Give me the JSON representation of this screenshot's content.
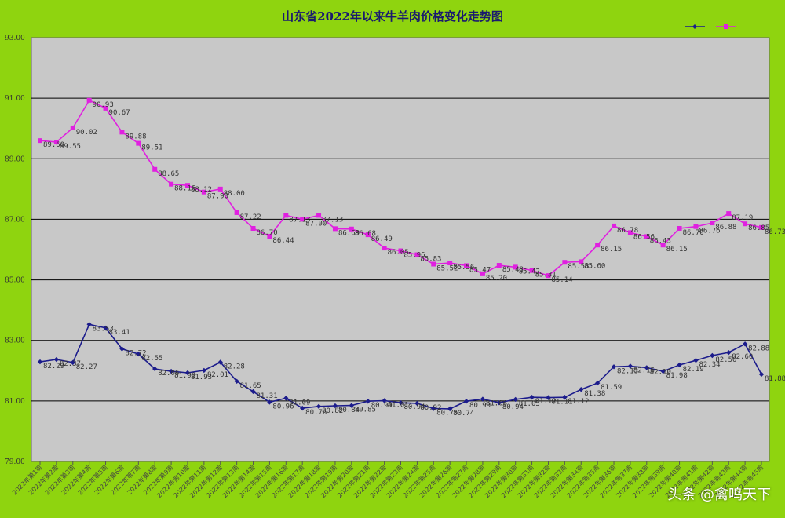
{
  "colors": {
    "background": "#8fd40f",
    "plot_area": "#c8c8c8",
    "series1": "#1c1c8c",
    "series2": "#e020e0",
    "gridline": "#000000"
  },
  "watermark": "头条 @禽鸣天下",
  "chart_data": {
    "type": "line",
    "title": "山东省2022年以来牛羊肉价格变化走势图",
    "xlabel": "",
    "ylabel": "",
    "ylim": [
      79,
      93
    ],
    "yticks": [
      "79.00",
      "81.00",
      "83.00",
      "85.00",
      "87.00",
      "89.00",
      "91.00",
      "93.00"
    ],
    "grid": true,
    "legend_position": "top-right",
    "categories": [
      "2022年第1周",
      "2022年第2周",
      "2022年第3周",
      "2022年第4周",
      "2022年第5周",
      "2022年第6周",
      "2022年第7周",
      "2022年第8周",
      "2022年第9周",
      "2022年第10周",
      "2022年第11周",
      "2022年第12周",
      "2022年第13周",
      "2022年第14周",
      "2022年第15周",
      "2022年第16周",
      "2022年第17周",
      "2022年第18周",
      "2022年第19周",
      "2022年第20周",
      "2022年第21周",
      "2022年第22周",
      "2022年第23周",
      "2022年第24周",
      "2022年第25周",
      "2022年第26周",
      "2022年第27周",
      "2022年第28周",
      "2022年第29周",
      "2022年第30周",
      "2022年第31周",
      "2022年第32周",
      "2022年第33周",
      "2022年第34周",
      "2022年第35周",
      "2022年第36周",
      "2022年第37周",
      "2022年第38周",
      "2022年第39周",
      "2022年第40周",
      "2022年第41周",
      "2022年第42周",
      "2022年第43周",
      "2022年第44周",
      "2022年第45周"
    ],
    "series": [
      {
        "values": [
          82.29,
          82.37,
          82.27,
          83.53,
          83.41,
          82.72,
          82.55,
          82.06,
          81.98,
          81.93,
          82.01,
          82.28,
          81.65,
          81.31,
          80.96,
          81.09,
          80.76,
          80.82,
          80.84,
          80.85,
          80.99,
          81.01,
          80.94,
          80.92,
          80.75,
          80.74,
          80.99,
          81.06,
          80.94,
          81.05,
          81.12,
          81.11,
          81.12,
          81.38,
          81.59,
          82.13,
          82.15,
          82.1,
          81.98,
          82.19,
          82.34,
          82.5,
          82.6,
          82.88,
          81.88
        ],
        "labels": [
          "82.29",
          "82.37",
          "82.27",
          "83.53",
          "83.41",
          "82.72",
          "82.55",
          "82.06",
          "81.98",
          "81.93",
          "82.01",
          "82.28",
          "81.65",
          "81.31",
          "80.96",
          "81.09",
          "80.76",
          "80.82",
          "80.84",
          "80.85",
          "80.99",
          "81.01",
          "80.94",
          "80.92",
          "80.75",
          "80.74",
          "80.99",
          "81.06",
          "80.94",
          "81.05",
          "81.12",
          "81.11",
          "81.12",
          "81.38",
          "81.59",
          "82.13",
          "82.15",
          "82.10",
          "81.98",
          "82.19",
          "82.34",
          "82.50",
          "82.60",
          "82.88",
          "81.88"
        ]
      },
      {
        "values": [
          89.6,
          89.55,
          90.02,
          90.93,
          90.67,
          89.88,
          89.51,
          88.65,
          88.16,
          88.12,
          87.9,
          88.0,
          87.22,
          86.7,
          86.44,
          87.13,
          87.0,
          87.13,
          86.69,
          86.68,
          86.49,
          86.05,
          85.96,
          85.83,
          85.52,
          85.56,
          85.47,
          85.2,
          85.48,
          85.42,
          85.31,
          85.14,
          85.58,
          85.6,
          86.15,
          86.78,
          86.56,
          86.43,
          86.15,
          86.7,
          86.76,
          86.88,
          87.19,
          86.85,
          86.73
        ],
        "labels": [
          "89.60",
          "89.55",
          "90.02",
          "90.93",
          "90.67",
          "89.88",
          "89.51",
          "88.65",
          "88.16",
          "88.12",
          "87.90",
          "88.00",
          "87.22",
          "86.70",
          "86.44",
          "87.13",
          "87.00",
          "87.13",
          "86.69",
          "86.68",
          "86.49",
          "86.05",
          "85.96",
          "85.83",
          "85.52",
          "85.56",
          "85.47",
          "85.20",
          "85.48",
          "85.42",
          "85.31",
          "85.14",
          "85.58",
          "85.60",
          "86.15",
          "86.78",
          "86.56",
          "86.43",
          "86.15",
          "86.70",
          "86.76",
          "86.88",
          "87.19",
          "86.85",
          "86.73"
        ]
      }
    ]
  }
}
